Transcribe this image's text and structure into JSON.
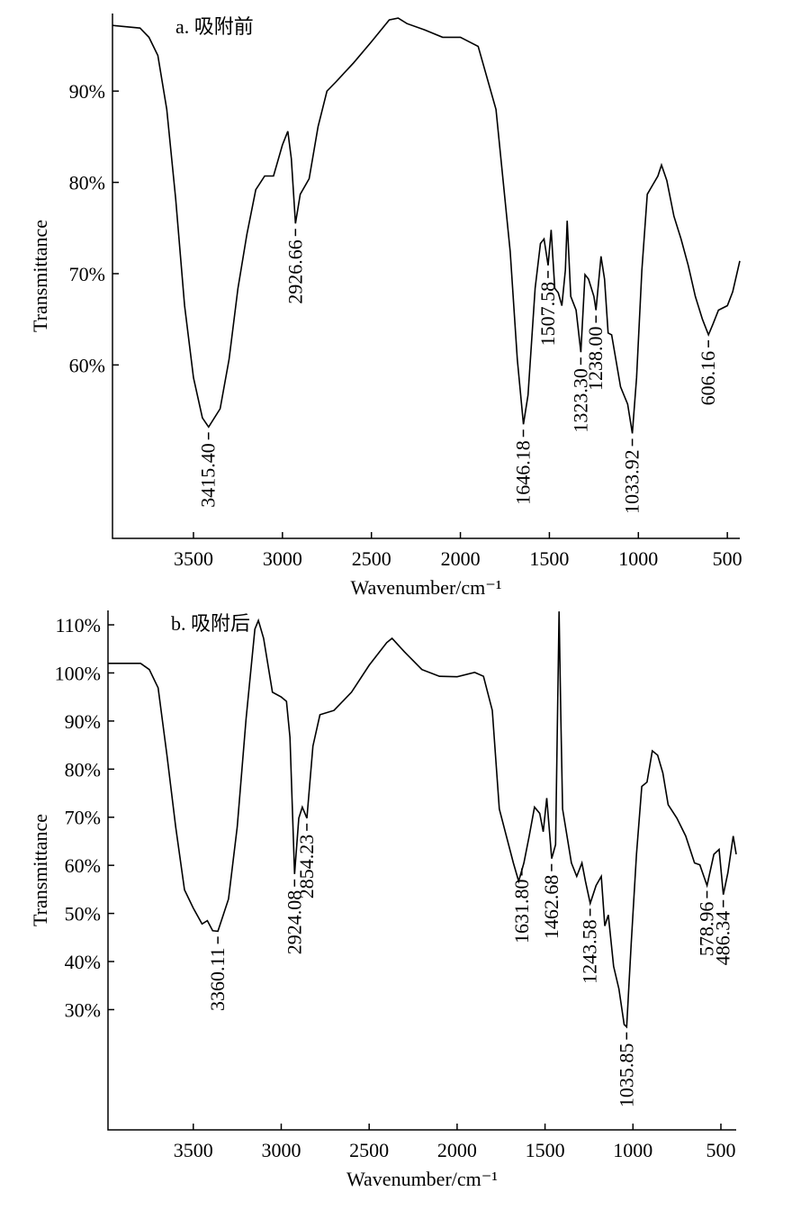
{
  "chart_data": [
    {
      "type": "line",
      "title": "a. 吸附前",
      "xlabel": "Wavenumber/cm⁻¹",
      "ylabel": "Transmittance",
      "color": "#000000",
      "xlim": [
        3955,
        430
      ],
      "ylim": [
        41,
        98.5
      ],
      "xticks": [
        3500,
        3000,
        2500,
        2000,
        1500,
        1000,
        500
      ],
      "yticks": [
        {
          "value": 90,
          "label": "90%"
        },
        {
          "value": 80,
          "label": "80%"
        },
        {
          "value": 70,
          "label": "70%"
        },
        {
          "value": 60,
          "label": "60%"
        }
      ],
      "x": [
        3955,
        3800,
        3750,
        3700,
        3650,
        3600,
        3550,
        3500,
        3450,
        3415,
        3350,
        3300,
        3250,
        3200,
        3150,
        3100,
        3050,
        3000,
        2970,
        2950,
        2926.66,
        2900,
        2850,
        2800,
        2750,
        2700,
        2600,
        2500,
        2400,
        2350,
        2300,
        2200,
        2100,
        2000,
        1900,
        1800,
        1760,
        1720,
        1680,
        1646,
        1620,
        1580,
        1550,
        1530,
        1507,
        1490,
        1470,
        1450,
        1430,
        1410,
        1400,
        1380,
        1350,
        1323,
        1300,
        1280,
        1250,
        1238,
        1210,
        1190,
        1170,
        1150,
        1100,
        1060,
        1034,
        1010,
        980,
        950,
        920,
        890,
        870,
        840,
        800,
        760,
        720,
        680,
        640,
        606,
        580,
        550,
        500,
        470,
        430
      ],
      "values": [
        97.2,
        96.9,
        95.9,
        93.9,
        88,
        78.2,
        66.5,
        58.6,
        54.2,
        53.2,
        55.2,
        60.6,
        68.4,
        74.3,
        79.2,
        80.7,
        80.7,
        84.1,
        85.6,
        82.6,
        75.5,
        78.7,
        80.4,
        86.1,
        90,
        91,
        93.1,
        95.4,
        97.8,
        98,
        97.4,
        96.7,
        95.9,
        95.9,
        94.9,
        88,
        80.2,
        72.4,
        60.6,
        53.5,
        56.7,
        68.4,
        73.3,
        73.8,
        70.9,
        74.8,
        68.4,
        67.9,
        66.5,
        70.4,
        75.8,
        67.5,
        66,
        61.4,
        69.9,
        69.4,
        67.5,
        66,
        71.9,
        69.4,
        63.5,
        63.3,
        57.6,
        55.7,
        52.5,
        58.6,
        70.4,
        78.7,
        79.7,
        80.7,
        81.9,
        80.2,
        76.3,
        73.8,
        70.9,
        67.5,
        65,
        63.3,
        64.5,
        66,
        66.5,
        68,
        71.4
      ],
      "annotations": [
        {
          "value": 3415.4,
          "label": "3415.40"
        },
        {
          "value": 2926.66,
          "label": "2926.66"
        },
        {
          "value": 1646.18,
          "label": "1646.18"
        },
        {
          "value": 1507.58,
          "label": "1507.58"
        },
        {
          "value": 1323.3,
          "label": "1323.30"
        },
        {
          "value": 1238,
          "label": "1238.00"
        },
        {
          "value": 1033.92,
          "label": "1033.92"
        },
        {
          "value": 606.16,
          "label": "606.16"
        }
      ]
    },
    {
      "type": "line",
      "title": "b. 吸附后",
      "xlabel": "Wavenumber/cm⁻¹",
      "ylabel": "Transmittance",
      "color": "#000000",
      "xlim": [
        3985,
        413
      ],
      "ylim": [
        5,
        113
      ],
      "xticks": [
        3500,
        3000,
        2500,
        2000,
        1500,
        1000,
        500
      ],
      "yticks": [
        {
          "value": 110,
          "label": "110%"
        },
        {
          "value": 100,
          "label": "100%"
        },
        {
          "value": 90,
          "label": "90%"
        },
        {
          "value": 80,
          "label": "80%"
        },
        {
          "value": 70,
          "label": "70%"
        },
        {
          "value": 60,
          "label": "60%"
        },
        {
          "value": 50,
          "label": "50%"
        },
        {
          "value": 40,
          "label": "40%"
        },
        {
          "value": 30,
          "label": "30%"
        }
      ],
      "x": [
        3985,
        3800,
        3750,
        3700,
        3650,
        3600,
        3550,
        3500,
        3450,
        3420,
        3390,
        3360,
        3300,
        3250,
        3200,
        3150,
        3130,
        3100,
        3050,
        3000,
        2970,
        2950,
        2924,
        2900,
        2880,
        2854,
        2820,
        2780,
        2700,
        2600,
        2500,
        2400,
        2370,
        2300,
        2200,
        2100,
        2000,
        1900,
        1850,
        1800,
        1760,
        1720,
        1680,
        1650,
        1620,
        1590,
        1560,
        1530,
        1510,
        1490,
        1462,
        1440,
        1420,
        1410,
        1400,
        1350,
        1320,
        1290,
        1270,
        1243,
        1210,
        1180,
        1160,
        1140,
        1110,
        1080,
        1050,
        1036,
        1010,
        980,
        950,
        920,
        890,
        860,
        830,
        800,
        750,
        700,
        650,
        620,
        579,
        540,
        510,
        486,
        460,
        430,
        413
      ],
      "values": [
        102,
        102,
        100.7,
        96.9,
        82.9,
        68,
        54.9,
        51.1,
        47.8,
        48.5,
        46.4,
        46.3,
        53,
        68,
        90.4,
        109.1,
        110.9,
        107.2,
        96,
        95,
        94.1,
        86.6,
        58.2,
        69.8,
        72.1,
        69.8,
        84.8,
        91.3,
        92.2,
        96,
        101.6,
        106.3,
        107.2,
        104.4,
        100.7,
        99.3,
        99.2,
        100.1,
        99.3,
        92.2,
        71.7,
        66.1,
        60.5,
        56.7,
        60.5,
        66.1,
        72.1,
        70.8,
        67,
        74,
        61.4,
        64.3,
        112.8,
        90.4,
        71.7,
        60.5,
        57.7,
        60.5,
        56.7,
        52.1,
        55.8,
        57.7,
        47.4,
        49.7,
        39,
        34.3,
        26.9,
        26.4,
        43.6,
        62.3,
        76.4,
        77.3,
        83.8,
        82.9,
        79.2,
        72.6,
        69.8,
        66.1,
        60.5,
        60.1,
        55.8,
        62.3,
        63.3,
        53.9,
        58.5,
        66.1,
        62.3
      ],
      "annotations": [
        {
          "value": 3360.11,
          "label": "3360.11"
        },
        {
          "value": 2924.08,
          "label": "2924.08"
        },
        {
          "value": 2854.23,
          "label": "2854.23"
        },
        {
          "value": 1631.8,
          "label": "1631.80"
        },
        {
          "value": 1462.68,
          "label": "1462.68"
        },
        {
          "value": 1243.58,
          "label": "1243.58"
        },
        {
          "value": 1035.85,
          "label": "1035.85"
        },
        {
          "value": 578.96,
          "label": "578.96"
        },
        {
          "value": 486.34,
          "label": "486.34"
        }
      ]
    }
  ]
}
